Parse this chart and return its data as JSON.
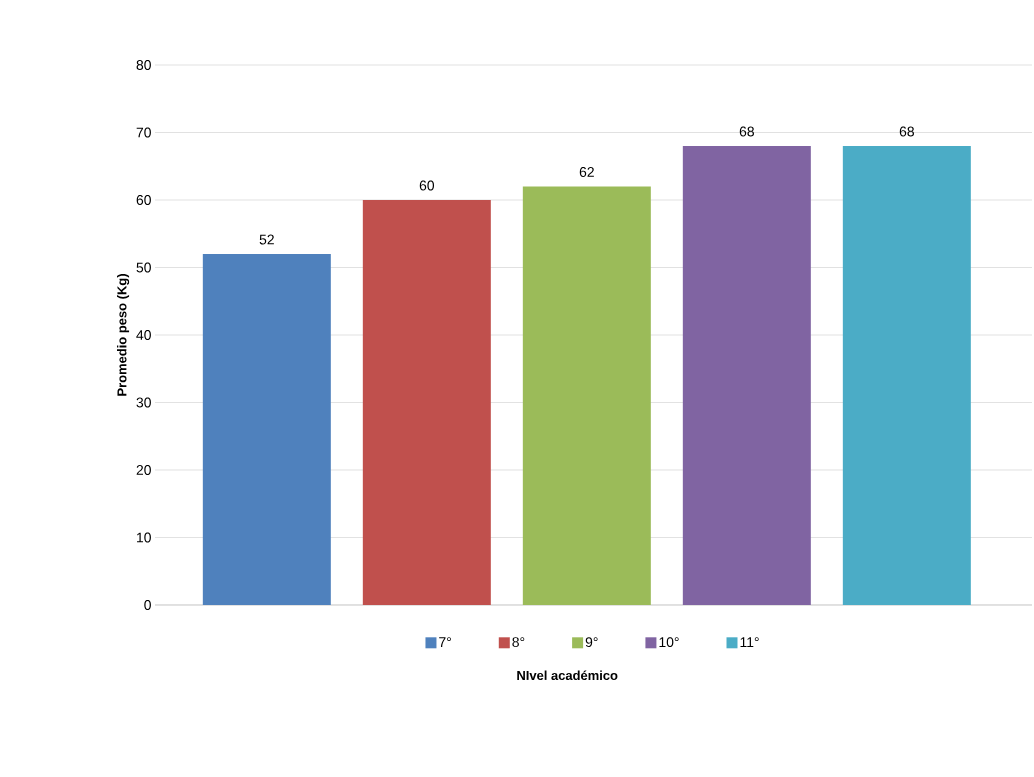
{
  "chart_data": {
    "type": "bar",
    "xlabel": "NIvel académico",
    "ylabel": "Promedio peso (Kg)",
    "categories": [
      null
    ],
    "series": [
      {
        "name": "7°",
        "color": "#4f81bd",
        "values": [
          52
        ]
      },
      {
        "name": "8°",
        "color": "#c0504d",
        "values": [
          60
        ]
      },
      {
        "name": "9°",
        "color": "#9bbb59",
        "values": [
          62
        ]
      },
      {
        "name": "10°",
        "color": "#8064a2",
        "values": [
          68
        ]
      },
      {
        "name": "11°",
        "color": "#4bacc6",
        "values": [
          68
        ]
      }
    ],
    "ylim": [
      0,
      80
    ],
    "yticks": [
      0,
      10,
      20,
      30,
      40,
      50,
      60,
      70,
      80
    ],
    "grid": "y",
    "legend": "bottom",
    "data_labels": true,
    "tick_labels": "y"
  }
}
